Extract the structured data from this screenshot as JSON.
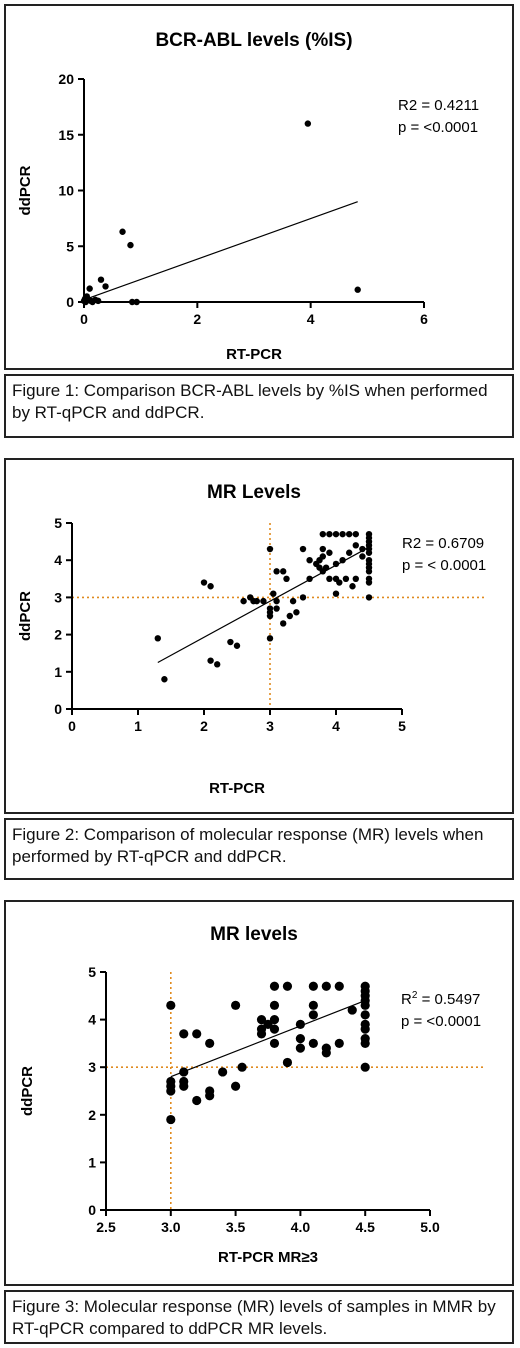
{
  "figures": [
    {
      "caption": "Figure 1: Comparison BCR-ABL levels by %IS when performed by RT-qPCR and ddPCR."
    },
    {
      "caption": "Figure 2: Comparison of molecular response (MR) levels when performed by RT-qPCR and ddPCR."
    },
    {
      "caption": "Figure 3: Molecular response (MR) levels of samples in MMR by RT-qPCR compared to ddPCR MR levels."
    }
  ],
  "colors": {
    "points": "#000000",
    "reference_lines": "#e08a1e",
    "frame": "#222222"
  },
  "chart_data": [
    {
      "type": "scatter",
      "title": "BCR-ABL levels (%IS)",
      "xlabel": "RT-PCR",
      "ylabel": "ddPCR",
      "xlim": [
        0,
        6
      ],
      "ylim": [
        0,
        20
      ],
      "xticks": [
        0,
        2,
        4,
        6
      ],
      "yticks": [
        0,
        5,
        10,
        15,
        20
      ],
      "r2_text": "R2 = 0.4211",
      "p_text": "p  = <0.0001",
      "fit_line": {
        "x": [
          0,
          4.83
        ],
        "y": [
          0.2,
          9.0
        ]
      },
      "reference_lines": [],
      "x": [
        0.0,
        0.02,
        0.03,
        0.05,
        0.07,
        0.1,
        0.12,
        0.15,
        0.2,
        0.25,
        0.3,
        0.38,
        0.68,
        0.82,
        0.85,
        0.93,
        3.95,
        4.83
      ],
      "y": [
        0.1,
        0.3,
        0.0,
        0.5,
        0.2,
        1.2,
        0.1,
        0.0,
        0.2,
        0.1,
        2.0,
        1.4,
        6.3,
        5.1,
        0.0,
        0.0,
        16.0,
        1.1
      ]
    },
    {
      "type": "scatter",
      "title": "MR Levels",
      "xlabel": "RT-PCR",
      "ylabel": "ddPCR",
      "xlim": [
        0,
        5
      ],
      "ylim": [
        0,
        5
      ],
      "xticks": [
        0,
        1,
        2,
        3,
        4,
        5
      ],
      "yticks": [
        0,
        1,
        2,
        3,
        4,
        5
      ],
      "r2_text": "R2 =  0.6709",
      "p_text": "p = < 0.0001",
      "fit_line": {
        "x": [
          1.3,
          4.5
        ],
        "y": [
          1.25,
          4.35
        ]
      },
      "reference_lines": [
        {
          "axis": "x",
          "value": 3
        },
        {
          "axis": "y",
          "value": 3
        }
      ],
      "x": [
        1.3,
        1.4,
        2.0,
        2.1,
        2.1,
        2.2,
        2.4,
        2.5,
        2.6,
        2.7,
        2.75,
        2.8,
        2.9,
        3.0,
        3.0,
        3.0,
        3.0,
        3.0,
        3.05,
        3.1,
        3.1,
        3.1,
        3.2,
        3.2,
        3.25,
        3.3,
        3.35,
        3.4,
        3.5,
        3.5,
        3.6,
        3.6,
        3.7,
        3.75,
        3.75,
        3.8,
        3.8,
        3.8,
        3.8,
        3.85,
        3.9,
        3.9,
        3.9,
        4.0,
        4.0,
        4.0,
        4.0,
        4.05,
        4.1,
        4.1,
        4.15,
        4.2,
        4.2,
        4.25,
        4.3,
        4.3,
        4.3,
        4.4,
        4.4,
        4.5,
        4.5,
        4.5,
        4.5,
        4.5,
        4.5,
        4.5,
        4.5,
        4.5,
        4.5,
        4.5,
        4.5,
        4.5
      ],
      "y": [
        1.9,
        0.8,
        3.4,
        1.3,
        3.3,
        1.2,
        1.8,
        1.7,
        2.9,
        3.0,
        2.9,
        2.9,
        2.9,
        4.3,
        2.7,
        2.6,
        2.5,
        1.9,
        3.1,
        2.7,
        3.7,
        2.9,
        2.3,
        3.7,
        3.5,
        2.5,
        2.9,
        2.6,
        4.3,
        3.0,
        3.5,
        4.0,
        3.9,
        4.0,
        3.8,
        3.7,
        4.7,
        4.3,
        4.1,
        3.8,
        3.5,
        4.7,
        4.2,
        3.1,
        3.5,
        3.9,
        4.7,
        3.4,
        4.7,
        4.0,
        3.5,
        4.2,
        4.7,
        3.3,
        4.4,
        3.5,
        4.7,
        4.1,
        4.3,
        4.7,
        4.6,
        4.5,
        4.4,
        4.3,
        4.2,
        4.0,
        3.9,
        3.8,
        3.7,
        3.5,
        3.4,
        3.0
      ]
    },
    {
      "type": "scatter",
      "title": "MR levels",
      "xlabel": "RT-PCR MR≥3",
      "ylabel": "ddPCR",
      "xlim": [
        2.5,
        5.0
      ],
      "ylim": [
        0,
        5
      ],
      "xticks": [
        2.5,
        3.0,
        3.5,
        4.0,
        4.5,
        5.0
      ],
      "xtick_labels": [
        "2.5",
        "3.0",
        "3.5",
        "4.0",
        "4.5",
        "5.0"
      ],
      "yticks": [
        0,
        1,
        2,
        3,
        4,
        5
      ],
      "r2_text": "R",
      "r2_sup": "2",
      "r2_value": " = 0.5497",
      "p_text": "p = <0.0001",
      "fit_line": {
        "x": [
          3.0,
          4.5
        ],
        "y": [
          2.8,
          4.4
        ]
      },
      "reference_lines": [
        {
          "axis": "x",
          "value": 3
        },
        {
          "axis": "y",
          "value": 3
        }
      ],
      "x": [
        3.0,
        3.0,
        3.0,
        3.0,
        3.0,
        3.1,
        3.1,
        3.1,
        3.1,
        3.2,
        3.2,
        3.3,
        3.3,
        3.3,
        3.4,
        3.5,
        3.5,
        3.55,
        3.7,
        3.7,
        3.7,
        3.75,
        3.8,
        3.8,
        3.8,
        3.8,
        3.8,
        3.9,
        3.9,
        4.0,
        4.0,
        4.0,
        4.1,
        4.1,
        4.1,
        4.1,
        4.2,
        4.2,
        4.2,
        4.3,
        4.3,
        4.4,
        4.5,
        4.5,
        4.5,
        4.5,
        4.5,
        4.5,
        4.5,
        4.5,
        4.5,
        4.5,
        4.5
      ],
      "y": [
        4.3,
        2.7,
        2.6,
        2.5,
        1.9,
        3.7,
        2.9,
        2.7,
        2.6,
        3.7,
        2.3,
        3.5,
        2.5,
        2.4,
        2.9,
        4.3,
        2.6,
        3.0,
        4.0,
        3.8,
        3.7,
        3.9,
        4.7,
        4.3,
        4.0,
        3.8,
        3.5,
        4.7,
        3.1,
        3.9,
        3.6,
        3.4,
        4.7,
        4.3,
        4.1,
        3.5,
        4.7,
        3.4,
        3.3,
        4.7,
        3.5,
        4.2,
        4.7,
        4.6,
        4.5,
        4.4,
        4.3,
        4.1,
        3.9,
        3.8,
        3.6,
        3.5,
        3.0
      ]
    }
  ]
}
